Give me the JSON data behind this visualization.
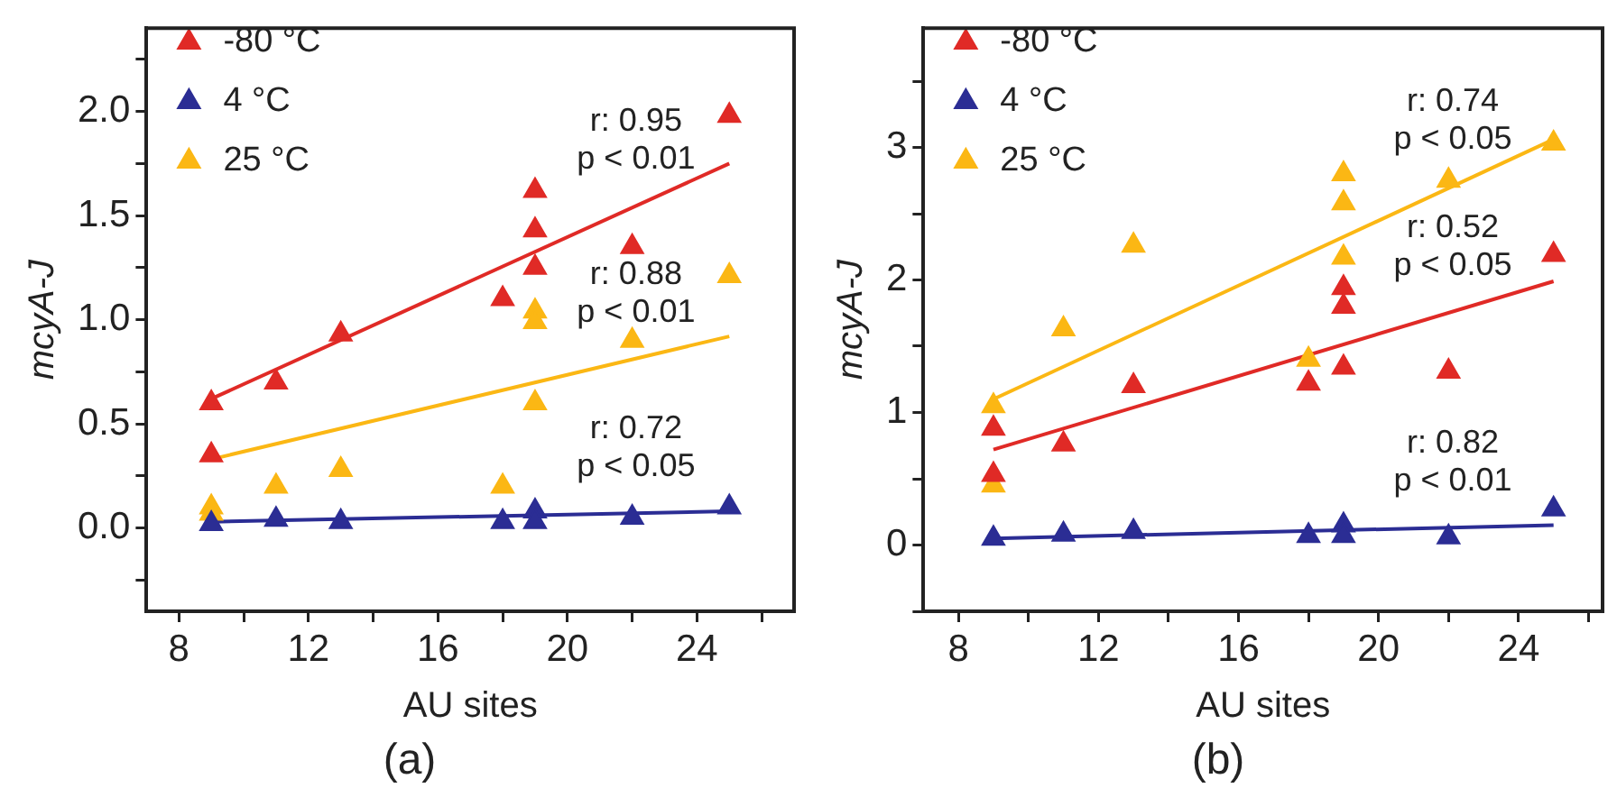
{
  "chart_data": [
    {
      "type": "scatter",
      "title": "(a)",
      "xlabel": "AU sites",
      "ylabel": "mcyA-J",
      "xlim": [
        7,
        27
      ],
      "ylim": [
        -0.4,
        2.4
      ],
      "xticks": [
        8,
        {
          "value": 10,
          "label": null
        },
        12,
        {
          "value": 14,
          "label": null
        },
        16,
        {
          "value": 18,
          "label": null
        },
        20,
        {
          "value": 22,
          "label": null
        },
        24,
        {
          "value": 26,
          "label": null
        }
      ],
      "yticks": [
        {
          "value": -0.25,
          "label": null
        },
        {
          "value": 0,
          "label": "0.0"
        },
        {
          "value": 0.25,
          "label": null
        },
        0.5,
        {
          "value": 0.75,
          "label": null
        },
        {
          "value": 1,
          "label": "1.0"
        },
        {
          "value": 1.25,
          "label": null
        },
        1.5,
        {
          "value": 1.75,
          "label": null
        },
        {
          "value": 2,
          "label": "2.0"
        },
        {
          "value": 2.25,
          "label": null
        }
      ],
      "grid": false,
      "legend": "top left",
      "series": [
        {
          "name": "-80 °C",
          "color": "#e02a26",
          "marker": "triangle",
          "x": [
            9,
            9,
            11,
            13,
            18,
            19,
            19,
            19,
            22,
            25
          ],
          "values": [
            0.6,
            0.35,
            0.7,
            0.93,
            1.1,
            1.62,
            1.43,
            1.25,
            1.35,
            1.98
          ]
        },
        {
          "name": "4 °C",
          "color": "#2b2d94",
          "marker": "triangle",
          "x": [
            9,
            11,
            13,
            18,
            19,
            19,
            22,
            25
          ],
          "values": [
            0.02,
            0.04,
            0.03,
            0.03,
            0.08,
            0.03,
            0.05,
            0.1
          ]
        },
        {
          "name": "25 °C",
          "color": "#fbb714",
          "marker": "triangle",
          "x": [
            9,
            9,
            11,
            13,
            18,
            19,
            19,
            19,
            22,
            25
          ],
          "values": [
            0.1,
            0.07,
            0.2,
            0.28,
            0.2,
            1.04,
            0.99,
            0.6,
            0.9,
            1.21
          ]
        },
        {
          "type": "line",
          "color": "#e02a26",
          "marker": "none",
          "x": [
            9,
            25
          ],
          "values": [
            0.62,
            1.75
          ]
        },
        {
          "type": "line",
          "color": "#2b2d94",
          "marker": "none",
          "x": [
            9,
            25
          ],
          "values": [
            0.03,
            0.08
          ]
        },
        {
          "type": "line",
          "color": "#fbb714",
          "marker": "none",
          "x": [
            9,
            25
          ],
          "values": [
            0.33,
            0.92
          ]
        }
      ],
      "annotations": [
        "r: 0.95\np < 0.01",
        "r: 0.72\np < 0.05",
        "r: 0.88\np < 0.01"
      ]
    },
    {
      "type": "scatter",
      "title": "(b)",
      "xlabel": "AU sites",
      "ylabel": "mcyA-J",
      "xlim": [
        7,
        26.4
      ],
      "ylim": [
        -0.5,
        3.9
      ],
      "xticks": [
        8,
        {
          "value": 10,
          "label": null
        },
        12,
        {
          "value": 14,
          "label": null
        },
        16,
        {
          "value": 18,
          "label": null
        },
        20,
        {
          "value": 22,
          "label": null
        },
        24,
        {
          "value": 26,
          "label": null
        }
      ],
      "yticks": [
        {
          "value": -0.5,
          "label": null
        },
        0,
        {
          "value": 0.5,
          "label": null
        },
        1,
        {
          "value": 1.5,
          "label": null
        },
        2,
        {
          "value": 2.5,
          "label": null
        },
        3,
        {
          "value": 3.5,
          "label": null
        }
      ],
      "grid": false,
      "legend": "top left",
      "series": [
        {
          "name": "-80 °C",
          "color": "#e02a26",
          "marker": "triangle",
          "x": [
            9,
            9,
            11,
            13,
            18,
            19,
            19,
            19,
            22,
            25
          ],
          "values": [
            0.88,
            0.53,
            0.76,
            1.2,
            1.22,
            1.94,
            1.8,
            1.34,
            1.31,
            2.19
          ]
        },
        {
          "name": "4 °C",
          "color": "#2b2d94",
          "marker": "triangle",
          "x": [
            9,
            11,
            13,
            18,
            19,
            19,
            22,
            25
          ],
          "values": [
            0.05,
            0.08,
            0.1,
            0.07,
            0.15,
            0.07,
            0.06,
            0.27
          ]
        },
        {
          "name": "25 °C",
          "color": "#fbb714",
          "marker": "triangle",
          "x": [
            9,
            9,
            11,
            13,
            18,
            19,
            19,
            19,
            22,
            25
          ],
          "values": [
            1.05,
            0.45,
            1.63,
            2.26,
            1.4,
            2.8,
            2.58,
            2.17,
            2.75,
            3.03
          ]
        },
        {
          "type": "line",
          "color": "#e02a26",
          "marker": "none",
          "x": [
            9,
            25
          ],
          "values": [
            0.72,
            1.99
          ]
        },
        {
          "type": "line",
          "color": "#2b2d94",
          "marker": "none",
          "x": [
            9,
            25
          ],
          "values": [
            0.05,
            0.15
          ]
        },
        {
          "type": "line",
          "color": "#fbb714",
          "marker": "none",
          "x": [
            9,
            25
          ],
          "values": [
            1.1,
            3.06
          ]
        }
      ],
      "annotations": [
        "r: 0.52\np < 0.05",
        "r: 0.82\np < 0.01",
        "r: 0.74\np < 0.05"
      ]
    }
  ]
}
